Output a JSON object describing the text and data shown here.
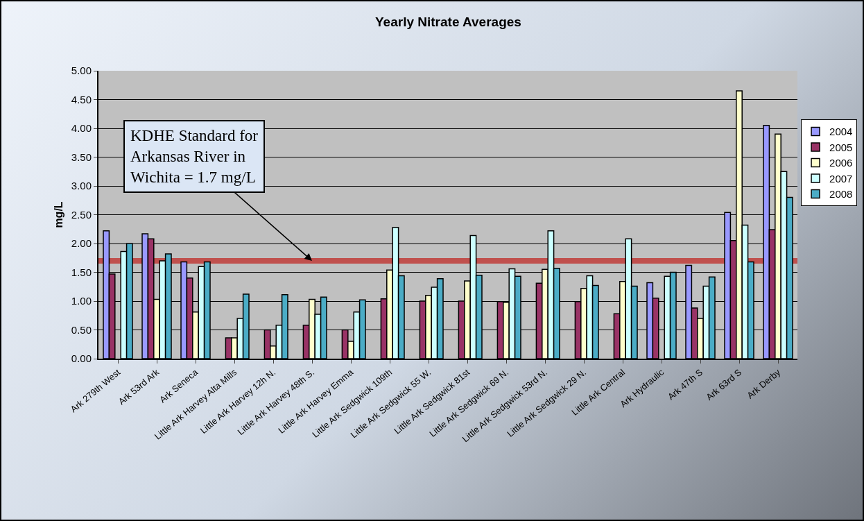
{
  "chart_data": {
    "type": "bar",
    "title": "Yearly Nitrate Averages",
    "ylabel": "mg/L",
    "categories": [
      "Ark 279th West",
      "Ark 53rd Ark",
      "Ark Seneca",
      "Little Ark Harvey Alta Mills",
      "Little Ark Harvey 12h N.",
      "Little Ark Harvey 48th S.",
      "Little Ark Harvey Emma",
      "Little Ark Sedgwick 109th",
      "Little Ark Sedgwick 55 W.",
      "Little Ark Sedgwick 81st",
      "Little Ark Sedgwick 69 N.",
      "Little Ark Sedgwick 53rd N.",
      "Little Ark Sedgwick 29 N.",
      "Little Ark Central",
      "Ark Hydraulic",
      "Ark 47th S",
      "Ark 63rd S",
      "Ark Derby"
    ],
    "series": [
      {
        "name": "2004",
        "color": "#9999ff",
        "values": [
          2.22,
          2.17,
          1.68,
          null,
          null,
          null,
          null,
          null,
          null,
          null,
          null,
          null,
          null,
          null,
          1.32,
          1.62,
          2.54,
          4.05
        ]
      },
      {
        "name": "2005",
        "color": "#993366",
        "values": [
          1.47,
          2.08,
          1.4,
          0.36,
          0.5,
          0.58,
          0.5,
          1.04,
          1.0,
          1.0,
          0.99,
          1.31,
          0.99,
          0.78,
          1.05,
          0.88,
          2.05,
          2.24
        ]
      },
      {
        "name": "2006",
        "color": "#ffffcc",
        "values": [
          null,
          1.03,
          0.81,
          0.36,
          0.22,
          1.03,
          0.3,
          1.54,
          1.1,
          1.35,
          0.98,
          1.55,
          1.22,
          1.34,
          null,
          0.7,
          4.65,
          3.9
        ]
      },
      {
        "name": "2007",
        "color": "#ccffff",
        "values": [
          1.86,
          1.7,
          1.6,
          0.7,
          0.58,
          0.77,
          0.81,
          2.28,
          1.24,
          2.14,
          1.56,
          2.22,
          1.44,
          2.08,
          1.43,
          1.26,
          2.32,
          3.25
        ]
      },
      {
        "name": "2008",
        "color": "#4bacc6",
        "values": [
          2.0,
          1.82,
          1.68,
          1.12,
          1.11,
          1.07,
          1.02,
          1.44,
          1.39,
          1.45,
          1.43,
          1.57,
          1.27,
          1.26,
          1.5,
          1.42,
          1.68,
          2.8
        ]
      }
    ],
    "ylim": [
      0,
      5
    ],
    "yticks": [
      {
        "value": 0,
        "label": "0.00"
      },
      {
        "value": 0.5,
        "label": "0.50"
      },
      {
        "value": 1,
        "label": "1.00"
      },
      {
        "value": 1.5,
        "label": "1.50"
      },
      {
        "value": 2,
        "label": "2.00"
      },
      {
        "value": 2.5,
        "label": "2.50"
      },
      {
        "value": 3,
        "label": "3.00"
      },
      {
        "value": 3.5,
        "label": "3.50"
      },
      {
        "value": 4,
        "label": "4.00"
      },
      {
        "value": 4.5,
        "label": "4.50"
      },
      {
        "value": 5,
        "label": "5.00"
      }
    ],
    "ref_lines": [
      {
        "axis": "y",
        "value": 1.7,
        "color": "#c0504d"
      }
    ],
    "annotations": [
      {
        "text": "KDHE Standard for\nArkansas River in\nWichita = 1.7 mg/L",
        "x": "Little Ark Harvey 48th S.",
        "y": 1.7
      }
    ],
    "grid": "y",
    "legend": "right"
  }
}
